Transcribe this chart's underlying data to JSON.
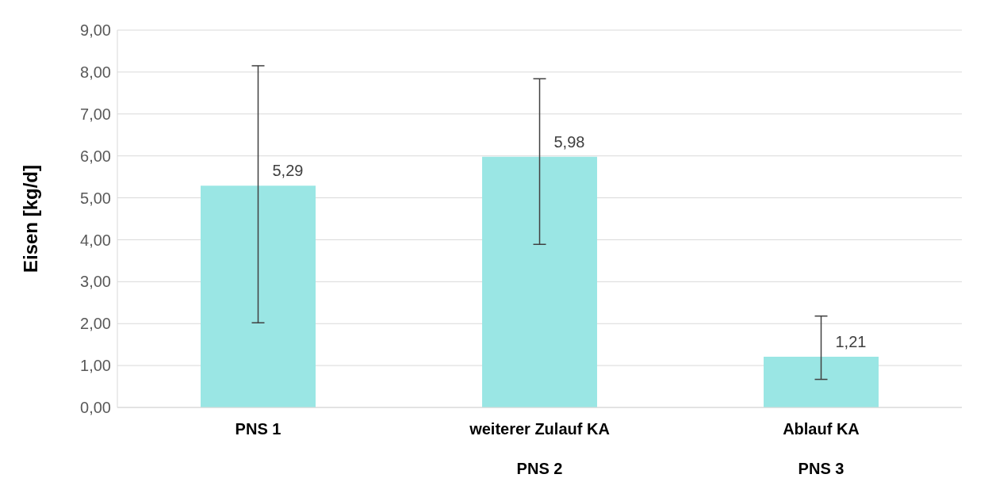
{
  "chart_data": {
    "type": "bar",
    "ylabel": "Eisen [kg/d]",
    "categories": [
      "PNS 1",
      "weiterer Zulauf KA\nPNS 2",
      "Ablauf KA\nPNS 3"
    ],
    "values": [
      5.29,
      5.98,
      1.21
    ],
    "errors": [
      [
        2.02,
        8.15
      ],
      [
        3.89,
        7.84
      ],
      [
        0.67,
        2.18
      ]
    ],
    "value_labels": [
      "5,29",
      "5,98",
      "1,21"
    ],
    "color": "#9ae6e4",
    "ylim": [
      0,
      9
    ],
    "yticks": [
      {
        "value": 0,
        "label": "0,00"
      },
      {
        "value": 1,
        "label": "1,00"
      },
      {
        "value": 2,
        "label": "2,00"
      },
      {
        "value": 3,
        "label": "3,00"
      },
      {
        "value": 4,
        "label": "4,00"
      },
      {
        "value": 5,
        "label": "5,00"
      },
      {
        "value": 6,
        "label": "6,00"
      },
      {
        "value": 7,
        "label": "7,00"
      },
      {
        "value": 8,
        "label": "8,00"
      },
      {
        "value": 9,
        "label": "9,00"
      }
    ],
    "grid": "y",
    "legend": false
  }
}
